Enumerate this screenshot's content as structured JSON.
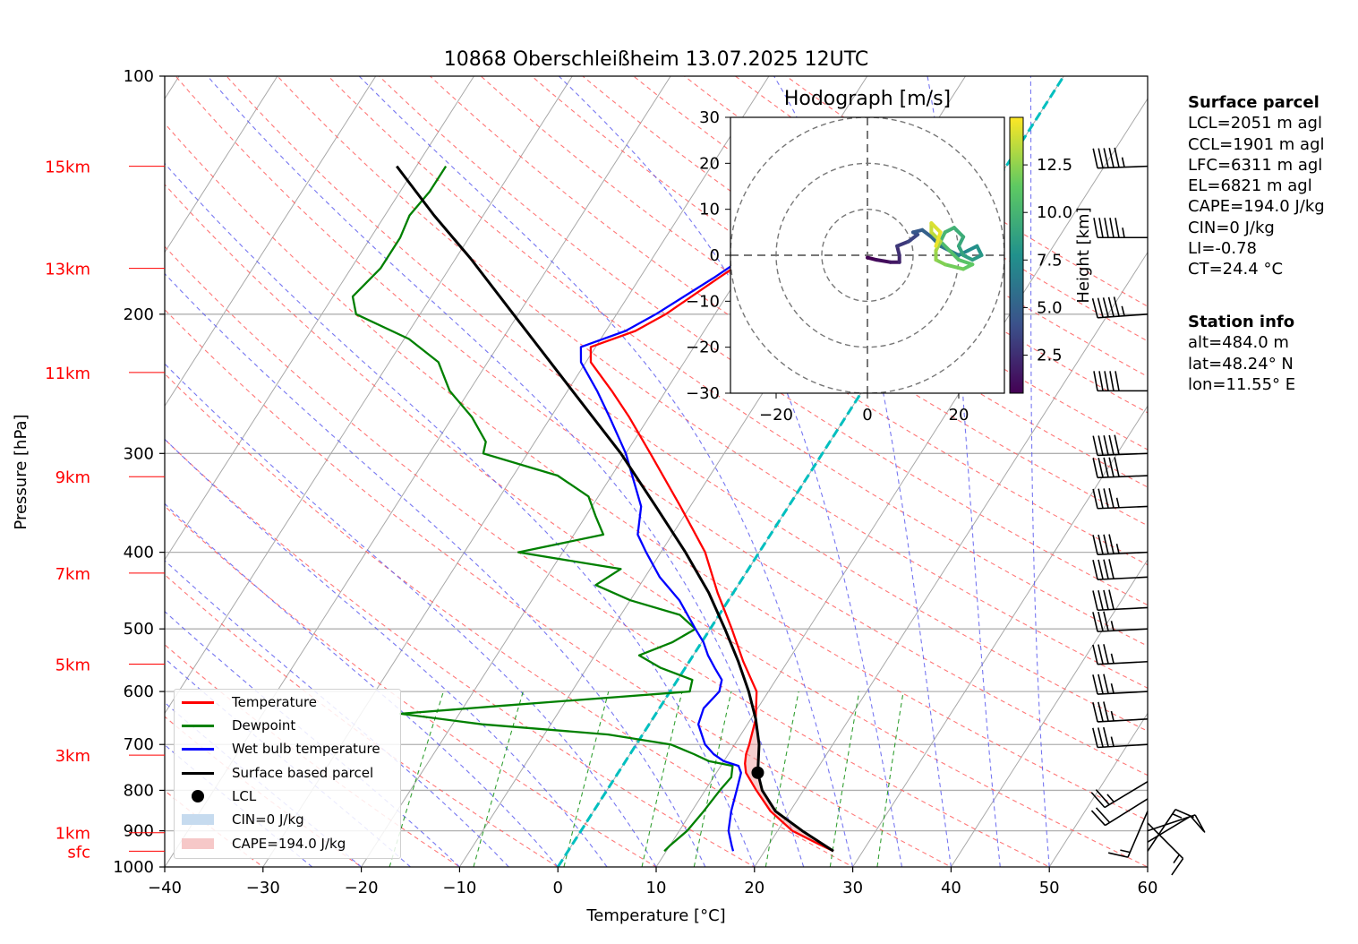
{
  "chart_data": {
    "type": "line",
    "title": "10868 Oberschleißheim 13.07.2025 12UTC",
    "xlabel": "Temperature [°C]",
    "ylabel": "Pressure [hPa]",
    "xlim": [
      -40,
      60
    ],
    "ylim_hpa": [
      1000,
      100
    ],
    "x_ticks": [
      "−40",
      "−30",
      "−20",
      "−10",
      "0",
      "10",
      "20",
      "30",
      "40",
      "50",
      "60"
    ],
    "y_ticks": [
      "1000",
      "900",
      "800",
      "700",
      "600",
      "500",
      "400",
      "300",
      "200",
      "100"
    ],
    "y_tick_values": [
      1000,
      900,
      800,
      700,
      600,
      500,
      400,
      300,
      200,
      100
    ],
    "height_labels": [
      {
        "label": "sfc",
        "p": 955
      },
      {
        "label": "1km",
        "p": 905
      },
      {
        "label": "3km",
        "p": 722
      },
      {
        "label": "5km",
        "p": 554
      },
      {
        "label": "7km",
        "p": 425
      },
      {
        "label": "9km",
        "p": 321
      },
      {
        "label": "11km",
        "p": 237
      },
      {
        "label": "13km",
        "p": 175
      },
      {
        "label": "15km",
        "p": 130
      }
    ],
    "legend": [
      {
        "label": "Temperature",
        "color": "#ff0000",
        "kind": "line"
      },
      {
        "label": "Dewpoint",
        "color": "#008000",
        "kind": "line"
      },
      {
        "label": "Wet bulb temperature",
        "color": "#0000ff",
        "kind": "line"
      },
      {
        "label": "Surface based parcel",
        "color": "#000000",
        "kind": "line"
      },
      {
        "label": "LCL",
        "color": "#000000",
        "kind": "dot"
      },
      {
        "label": "CIN=0 J/kg",
        "color": "#c6dbef",
        "kind": "patch"
      },
      {
        "label": "CAPE=194.0 J/kg",
        "color": "#f6c8c8",
        "kind": "patch"
      }
    ],
    "series": [
      {
        "name": "Temperature",
        "color": "#ff0000",
        "points": [
          [
            955,
            27.0
          ],
          [
            930,
            24.5
          ],
          [
            900,
            21.5
          ],
          [
            850,
            18.0
          ],
          [
            800,
            15.2
          ],
          [
            760,
            13.0
          ],
          [
            740,
            12.3
          ],
          [
            720,
            11.8
          ],
          [
            700,
            11.5
          ],
          [
            650,
            10.5
          ],
          [
            600,
            8.8
          ],
          [
            550,
            5.5
          ],
          [
            500,
            2.2
          ],
          [
            450,
            -1.6
          ],
          [
            400,
            -5.5
          ],
          [
            350,
            -11.0
          ],
          [
            300,
            -17.5
          ],
          [
            270,
            -22.0
          ],
          [
            250,
            -25.5
          ],
          [
            230,
            -29.5
          ],
          [
            220,
            -30.5
          ],
          [
            210,
            -27.0
          ],
          [
            200,
            -25.0
          ],
          [
            180,
            -22.0
          ],
          [
            160,
            -18.5
          ],
          [
            140,
            -15.5
          ],
          [
            130,
            -14.5
          ]
        ]
      },
      {
        "name": "Dewpoint",
        "color": "#008000",
        "points": [
          [
            955,
            9.8
          ],
          [
            940,
            10.0
          ],
          [
            900,
            10.8
          ],
          [
            850,
            11.2
          ],
          [
            800,
            11.5
          ],
          [
            770,
            11.8
          ],
          [
            745,
            11.2
          ],
          [
            735,
            8.5
          ],
          [
            720,
            6.5
          ],
          [
            700,
            3.5
          ],
          [
            680,
            -3.5
          ],
          [
            660,
            -17.0
          ],
          [
            640,
            -26.0
          ],
          [
            625,
            -16.0
          ],
          [
            600,
            2.0
          ],
          [
            580,
            1.5
          ],
          [
            560,
            -2.5
          ],
          [
            540,
            -5.5
          ],
          [
            520,
            -3.0
          ],
          [
            500,
            -1.5
          ],
          [
            480,
            -4.0
          ],
          [
            460,
            -10.0
          ],
          [
            440,
            -14.5
          ],
          [
            420,
            -13.0
          ],
          [
            400,
            -24.5
          ],
          [
            380,
            -17.0
          ],
          [
            360,
            -19.0
          ],
          [
            340,
            -21.0
          ],
          [
            320,
            -25.5
          ],
          [
            300,
            -34.5
          ],
          [
            290,
            -35.0
          ],
          [
            270,
            -38.0
          ],
          [
            250,
            -42.0
          ],
          [
            230,
            -45.0
          ],
          [
            215,
            -49.5
          ],
          [
            200,
            -56.5
          ],
          [
            190,
            -58.0
          ],
          [
            175,
            -57.0
          ],
          [
            160,
            -57.0
          ],
          [
            150,
            -57.5
          ],
          [
            140,
            -57.0
          ],
          [
            130,
            -57.0
          ]
        ]
      },
      {
        "name": "Wet bulb temperature",
        "color": "#0000ff",
        "points": [
          [
            955,
            16.8
          ],
          [
            940,
            16.3
          ],
          [
            900,
            15.0
          ],
          [
            850,
            14.0
          ],
          [
            800,
            13.2
          ],
          [
            760,
            12.5
          ],
          [
            745,
            11.8
          ],
          [
            735,
            10.0
          ],
          [
            720,
            8.5
          ],
          [
            700,
            7.0
          ],
          [
            660,
            5.0
          ],
          [
            630,
            4.5
          ],
          [
            600,
            5.0
          ],
          [
            580,
            4.5
          ],
          [
            560,
            3.0
          ],
          [
            540,
            1.5
          ],
          [
            520,
            0.2
          ],
          [
            500,
            -1.5
          ],
          [
            460,
            -5.0
          ],
          [
            430,
            -8.5
          ],
          [
            400,
            -11.5
          ],
          [
            380,
            -13.5
          ],
          [
            350,
            -15.0
          ],
          [
            300,
            -20.0
          ],
          [
            270,
            -24.0
          ],
          [
            250,
            -27.0
          ],
          [
            230,
            -30.5
          ],
          [
            220,
            -31.5
          ],
          [
            210,
            -28.0
          ],
          [
            200,
            -26.0
          ],
          [
            180,
            -22.5
          ],
          [
            160,
            -19.0
          ],
          [
            140,
            -16.0
          ],
          [
            130,
            -15.0
          ]
        ]
      },
      {
        "name": "Surface based parcel",
        "color": "#000000",
        "points": [
          [
            955,
            27.0
          ],
          [
            900,
            22.5
          ],
          [
            850,
            18.5
          ],
          [
            800,
            15.8
          ],
          [
            760,
            14.2
          ],
          [
            700,
            12.5
          ],
          [
            650,
            10.5
          ],
          [
            600,
            8.0
          ],
          [
            550,
            5.0
          ],
          [
            500,
            1.5
          ],
          [
            450,
            -2.5
          ],
          [
            400,
            -7.5
          ],
          [
            350,
            -13.5
          ],
          [
            300,
            -20.5
          ],
          [
            250,
            -29.5
          ],
          [
            200,
            -40.5
          ],
          [
            170,
            -48.5
          ],
          [
            150,
            -55.0
          ],
          [
            130,
            -62.0
          ]
        ]
      }
    ],
    "lcl": {
      "p": 760,
      "t": 14.2
    },
    "hodograph": {
      "title": "Hodograph [m/s]",
      "xlim": [
        -30,
        30
      ],
      "ylim": [
        -30,
        30
      ],
      "x_ticks": [
        "−20",
        "0",
        "20"
      ],
      "y_ticks": [
        "30",
        "20",
        "10",
        "0",
        "−10",
        "−20",
        "−30"
      ],
      "rings": [
        10,
        20,
        30
      ],
      "colorbar_label": "Height [km]",
      "colorbar_ticks": [
        "2.5",
        "5.0",
        "7.5",
        "10.0",
        "12.5"
      ],
      "colorbar_range": [
        0.5,
        15
      ],
      "points": [
        [
          0,
          -0.5,
          0.5
        ],
        [
          2,
          -1,
          1
        ],
        [
          5,
          -1.5,
          1.5
        ],
        [
          7,
          -1.5,
          2
        ],
        [
          7,
          0,
          2.5
        ],
        [
          6.5,
          2,
          3
        ],
        [
          9,
          3,
          3.5
        ],
        [
          11,
          4.5,
          4
        ],
        [
          10,
          5,
          4.5
        ],
        [
          12,
          5.5,
          5
        ],
        [
          14,
          4,
          5.5
        ],
        [
          16,
          2,
          6
        ],
        [
          18,
          1,
          6.5
        ],
        [
          20,
          0,
          7
        ],
        [
          22,
          1,
          7.5
        ],
        [
          24,
          2,
          8
        ],
        [
          25,
          0,
          8.3
        ],
        [
          23,
          -1,
          8.6
        ],
        [
          21,
          0,
          8.9
        ],
        [
          20,
          2,
          9.2
        ],
        [
          21,
          4,
          9.5
        ],
        [
          19,
          6,
          9.8
        ],
        [
          17,
          5,
          10.1
        ],
        [
          16,
          3,
          10.4
        ],
        [
          18,
          1,
          10.7
        ],
        [
          20,
          -1,
          11
        ],
        [
          23,
          -2,
          11.4
        ],
        [
          21,
          -3,
          11.8
        ],
        [
          17,
          -2,
          12.2
        ],
        [
          15,
          -1,
          12.6
        ],
        [
          15,
          1,
          13
        ],
        [
          16,
          3,
          13.4
        ],
        [
          14,
          5,
          13.8
        ],
        [
          14,
          7,
          14.2
        ],
        [
          16,
          5,
          14.6
        ],
        [
          15,
          2,
          15
        ]
      ]
    },
    "wind_barbs": [
      {
        "p": 955,
        "u": -4,
        "v": -6
      },
      {
        "p": 930,
        "u": -5,
        "v": -3
      },
      {
        "p": 900,
        "u": -6,
        "v": -2
      },
      {
        "p": 880,
        "u": -5,
        "v": 5
      },
      {
        "p": 850,
        "u": 3,
        "v": 7
      },
      {
        "p": 820,
        "u": 8,
        "v": 5
      },
      {
        "p": 780,
        "u": 10,
        "v": 6
      },
      {
        "p": 700,
        "u": 17,
        "v": 1
      },
      {
        "p": 650,
        "u": 18,
        "v": 1
      },
      {
        "p": 600,
        "u": 19,
        "v": 1
      },
      {
        "p": 550,
        "u": 19,
        "v": 1
      },
      {
        "p": 500,
        "u": 19,
        "v": 1
      },
      {
        "p": 470,
        "u": 20,
        "v": 1
      },
      {
        "p": 430,
        "u": 21,
        "v": 1
      },
      {
        "p": 400,
        "u": 22,
        "v": 1
      },
      {
        "p": 350,
        "u": 24,
        "v": 1
      },
      {
        "p": 320,
        "u": 25,
        "v": 1
      },
      {
        "p": 300,
        "u": 26,
        "v": 1
      },
      {
        "p": 250,
        "u": 27,
        "v": 0
      },
      {
        "p": 200,
        "u": 28,
        "v": 2
      },
      {
        "p": 160,
        "u": 28,
        "v": 0
      },
      {
        "p": 130,
        "u": 27,
        "v": 1
      }
    ]
  },
  "surface_parcel": {
    "header": "Surface parcel",
    "lines": [
      "LCL=2051 m agl",
      "CCL=1901 m agl",
      "LFC=6311 m agl",
      "EL=6821 m agl",
      "CAPE=194.0 J/kg",
      "CIN=0 J/kg",
      "LI=-0.78",
      "CT=24.4 °C"
    ]
  },
  "station_info": {
    "header": "Station info",
    "lines": [
      "alt=484.0 m",
      "lat=48.24° N",
      "lon=11.55° E"
    ]
  }
}
